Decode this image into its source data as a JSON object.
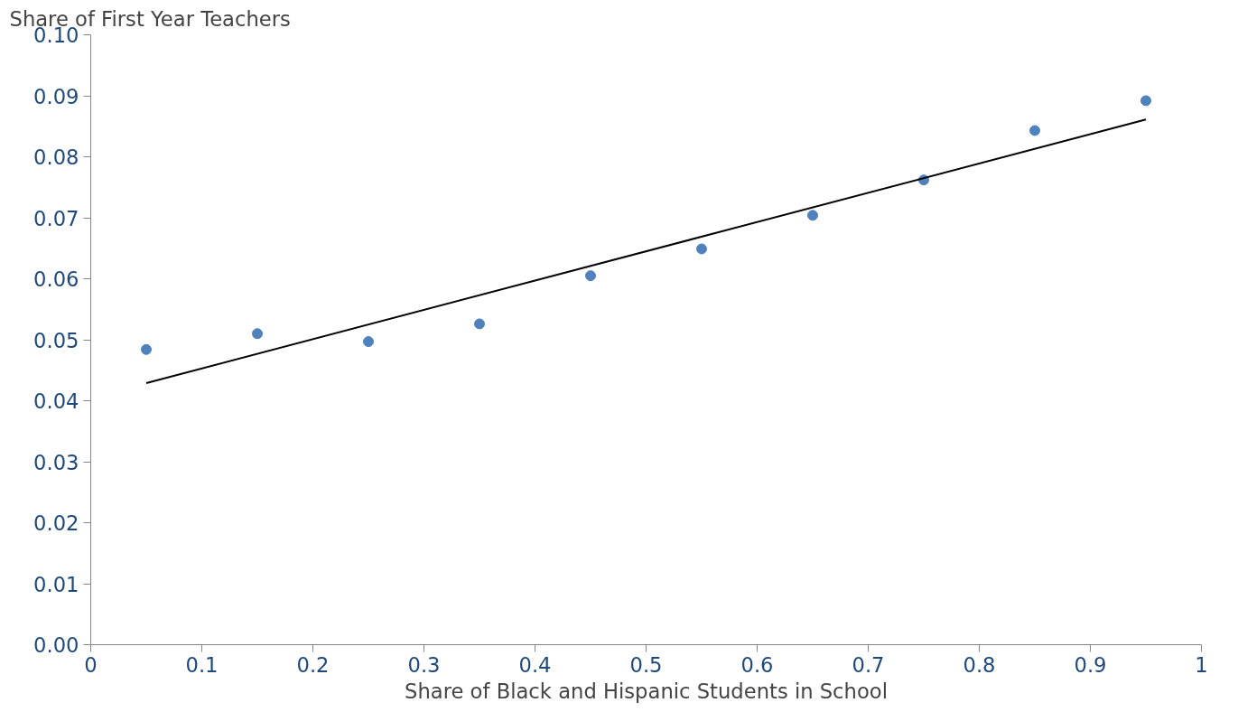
{
  "chart_data": {
    "type": "scatter",
    "xlabel": "Share of Black and Hispanic Students in School",
    "ylabel": "Share of First Year Teachers",
    "x": [
      0.05,
      0.15,
      0.25,
      0.35,
      0.45,
      0.55,
      0.65,
      0.75,
      0.85,
      0.95
    ],
    "series": [
      {
        "color": "#4f81bd",
        "values": [
          0.0484,
          0.051,
          0.0497,
          0.0526,
          0.0605,
          0.0649,
          0.0704,
          0.0762,
          0.0843,
          0.0892
        ]
      },
      {
        "type": "line",
        "marker": "none",
        "color": "#000000",
        "x": [
          0.05,
          0.95
        ],
        "values": [
          0.0429,
          0.0861
        ]
      }
    ],
    "marker": "circle",
    "xlim": [
      0,
      1
    ],
    "xticks": [
      0,
      0.1,
      0.2,
      0.3,
      0.4,
      0.5,
      0.6,
      0.7,
      0.8,
      0.9,
      1
    ],
    "ylim": [
      0,
      0.1
    ],
    "yticks": [
      {
        "value": 0,
        "label": "0.00"
      },
      {
        "value": 0.01,
        "label": "0.01"
      },
      {
        "value": 0.02,
        "label": "0.02"
      },
      {
        "value": 0.03,
        "label": "0.03"
      },
      {
        "value": 0.04,
        "label": "0.04"
      },
      {
        "value": 0.05,
        "label": "0.05"
      },
      {
        "value": 0.06,
        "label": "0.06"
      },
      {
        "value": 0.07,
        "label": "0.07"
      },
      {
        "value": 0.08,
        "label": "0.08"
      },
      {
        "value": 0.09,
        "label": "0.09"
      },
      {
        "value": 0.1,
        "label": "0.10"
      }
    ],
    "grid": false
  }
}
